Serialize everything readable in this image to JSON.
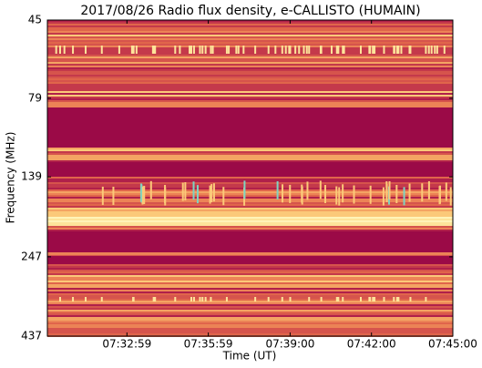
{
  "chart_data": {
    "type": "spectrogram",
    "title": "2017/08/26  Radio flux density, e-CALLISTO (HUMAIN)",
    "xlabel": "Time (UT)",
    "ylabel": "Frequency (MHz)",
    "xlim": [
      27003,
      27900
    ],
    "xticks": [
      {
        "value": 27179,
        "label": "07:32:59"
      },
      {
        "value": 27359,
        "label": "07:35:59"
      },
      {
        "value": 27540,
        "label": "07:39:00"
      },
      {
        "value": 27720,
        "label": "07:42:00"
      },
      {
        "value": 27900,
        "label": "07:45:00"
      }
    ],
    "ylim": [
      45,
      437
    ],
    "yscale": "log",
    "yinverted": true,
    "yticks": [
      45,
      79,
      139,
      247,
      437
    ]
  }
}
